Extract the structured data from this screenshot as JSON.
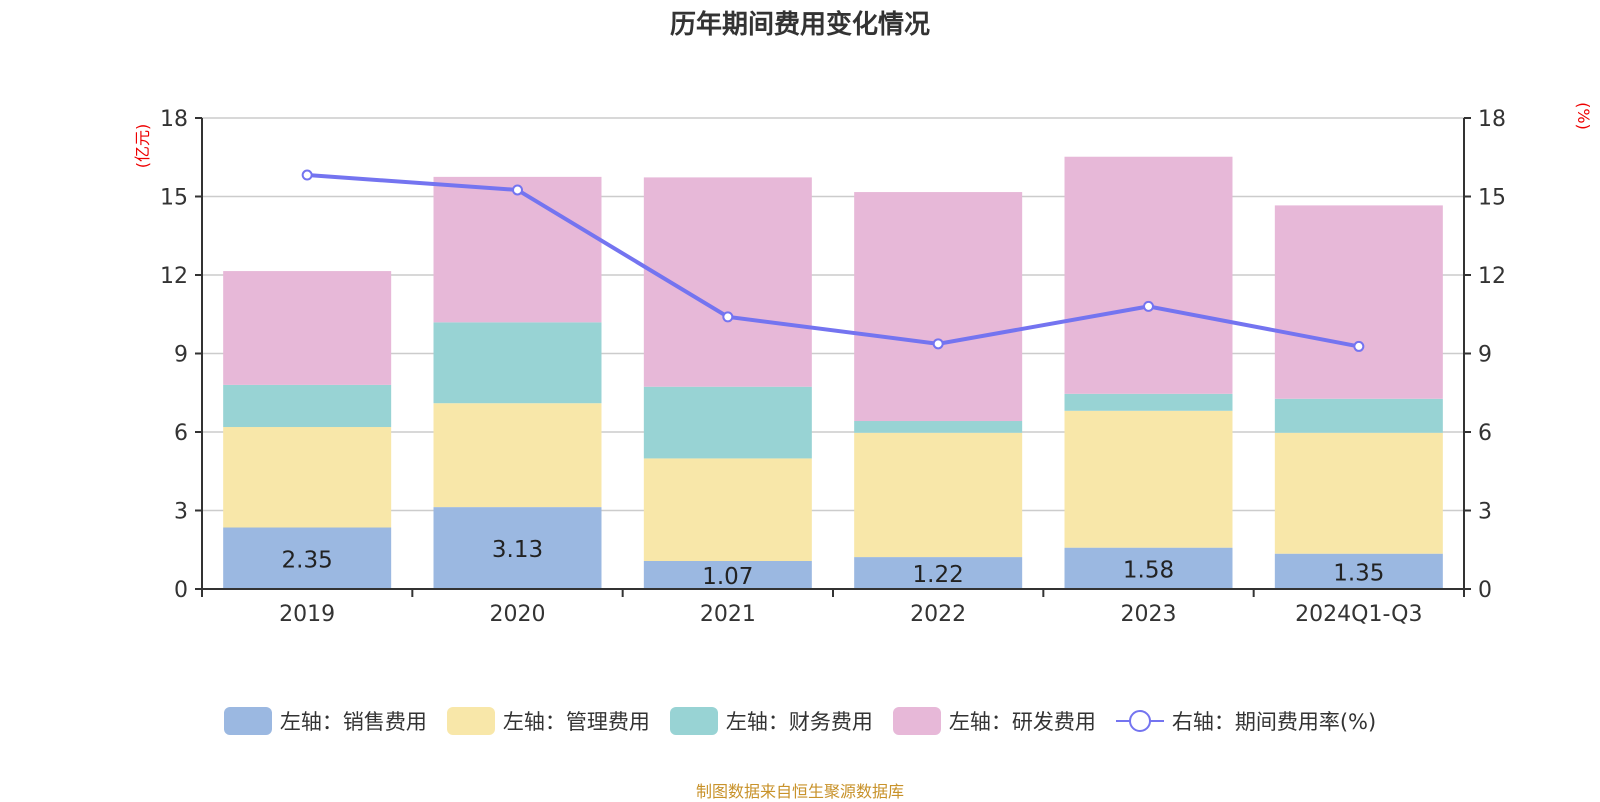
{
  "chart_data": {
    "type": "bar",
    "stacked": true,
    "title": "历年期间费用变化情况",
    "categories": [
      "2019",
      "2020",
      "2021",
      "2022",
      "2023",
      "2024Q1-Q3"
    ],
    "left_axis": {
      "label": "(亿元)",
      "ylim": [
        0,
        18
      ],
      "ticks": [
        0,
        3,
        6,
        9,
        12,
        15,
        18
      ]
    },
    "right_axis": {
      "label": "(%)",
      "ylim": [
        0,
        18
      ],
      "ticks": [
        0,
        3,
        6,
        9,
        12,
        15,
        18
      ]
    },
    "grid": true,
    "legend_position": "bottom",
    "series": [
      {
        "name": "左轴：销售费用",
        "axis": "left",
        "type": "bar",
        "color": "#9bb8e1",
        "values": [
          2.35,
          3.13,
          1.07,
          1.22,
          1.58,
          1.35
        ],
        "show_labels": true
      },
      {
        "name": "左轴：管理费用",
        "axis": "left",
        "type": "bar",
        "color": "#f8e7a9",
        "values": [
          3.84,
          3.97,
          3.92,
          4.75,
          5.23,
          4.62
        ]
      },
      {
        "name": "左轴：财务费用",
        "axis": "left",
        "type": "bar",
        "color": "#98d3d4",
        "values": [
          1.61,
          3.09,
          2.74,
          0.45,
          0.65,
          1.3
        ]
      },
      {
        "name": "左轴：研发费用",
        "axis": "left",
        "type": "bar",
        "color": "#e7b8d8",
        "values": [
          4.35,
          5.56,
          8.0,
          8.75,
          9.06,
          7.39
        ]
      },
      {
        "name": "右轴：期间费用率(%)",
        "axis": "right",
        "type": "line",
        "color": "#7474f0",
        "values": [
          15.82,
          15.25,
          10.4,
          9.37,
          10.8,
          9.27
        ]
      }
    ],
    "source": "制图数据来自恒生聚源数据库"
  }
}
